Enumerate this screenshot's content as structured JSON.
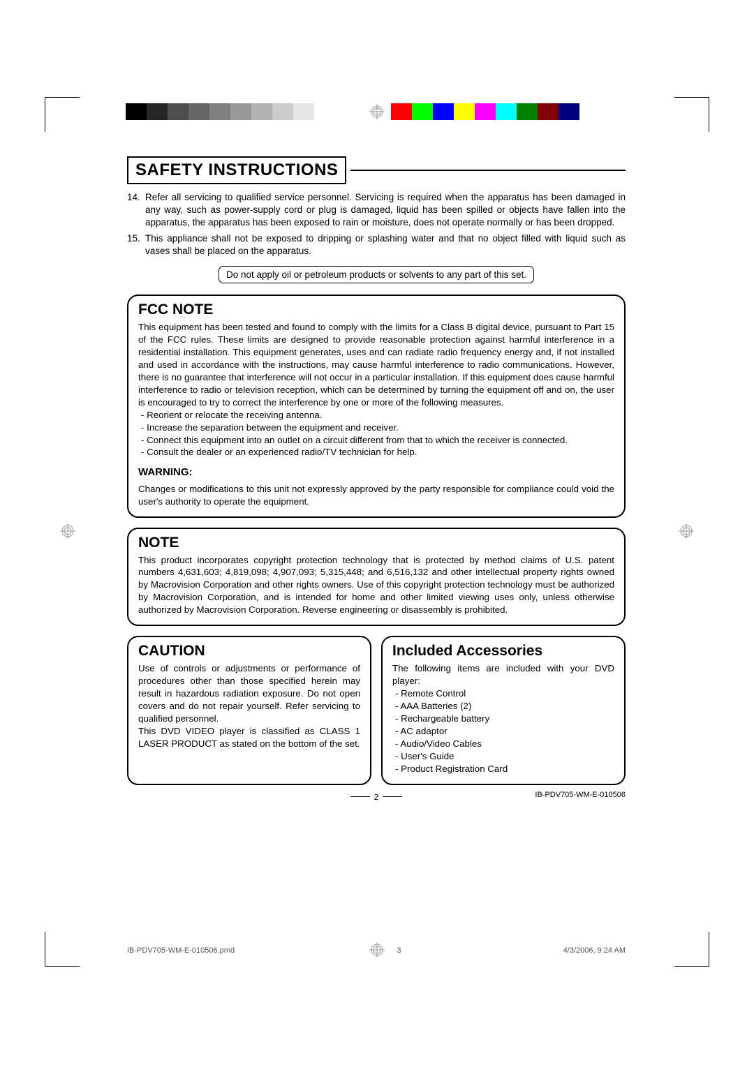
{
  "colorbar_gray": [
    "#000000",
    "#262626",
    "#4d4d4d",
    "#666666",
    "#808080",
    "#999999",
    "#b3b3b3",
    "#cccccc",
    "#e6e6e6",
    "#ffffff"
  ],
  "colorbar_color": [
    "#ff0000",
    "#00ff00",
    "#0000ff",
    "#ffff00",
    "#ff00ff",
    "#00ffff",
    "#008000",
    "#800000",
    "#000080",
    "#ffffff"
  ],
  "title": "SAFETY INSTRUCTIONS",
  "list": [
    {
      "num": "14.",
      "text": "Refer all servicing to qualified service personnel. Servicing is required when the apparatus has been damaged in any way, such as power-supply cord or plug is damaged, liquid has been spilled or objects have fallen into the apparatus, the apparatus has been exposed to rain or moisture, does not operate normally or has been dropped."
    },
    {
      "num": "15.",
      "text": "This appliance shall not be exposed to dripping or splashing water and that no object filled with liquid such as vases shall be placed on the apparatus."
    }
  ],
  "callout": "Do not apply oil or petroleum products or solvents to any part of this set.",
  "fcc": {
    "heading": "FCC NOTE",
    "body": "This equipment has been tested and found to comply with the limits for a Class B digital device, pursuant to Part 15 of the FCC rules. These limits are designed to provide reasonable protection against harmful interference in a residential installation. This equipment generates, uses and can radiate radio frequency energy and, if not installed and used in accordance with the instructions, may cause harmful interference to radio communications. However, there is no guarantee that interference will not occur in a particular installation. If this equipment does cause harmful interference to radio or television reception, which can be determined by turning the equipment off and on, the user is encouraged to try to correct the interference by one or more of the following measures.",
    "bullets": [
      "Reorient or relocate the receiving antenna.",
      "Increase the separation between the equipment and receiver.",
      "Connect this equipment into an outlet on a circuit different from that to which the receiver is connected.",
      "Consult the dealer or an experienced radio/TV technician for help."
    ],
    "warning_head": "WARNING:",
    "warning_body": "Changes or modifications to this unit not expressly approved by the party responsible for compliance could void the user's authority to operate the equipment."
  },
  "note": {
    "heading": "NOTE",
    "body": "This product incorporates copyright protection technology that is protected by method claims of U.S. patent numbers 4,631,603; 4,819,098; 4,907,093; 5,315,448; and 6,516,132 and other intellectual property rights owned by Macrovision Corporation and other rights owners. Use of this copyright protection technology must be authorized by Macrovision Corporation, and is intended for home and other limited viewing uses only, unless otherwise authorized by Macrovision Corporation. Reverse engineering or disassembly is prohibited."
  },
  "caution": {
    "heading": "CAUTION",
    "body": "Use of controls or adjustments or performance of procedures other than those specified herein may result in hazardous radiation exposure. Do not open covers and do not repair yourself. Refer servicing to qualified personnel.\nThis DVD VIDEO player is classified as CLASS 1 LASER PRODUCT as stated on the bottom of the set."
  },
  "accessories": {
    "heading": "Included Accessories",
    "intro": "The following items are included with your DVD player:",
    "items": [
      "Remote Control",
      "AAA Batteries (2)",
      "Rechargeable battery",
      "AC adaptor",
      "Audio/Video Cables",
      "User's Guide",
      "Product Registration Card"
    ]
  },
  "page_number": "2",
  "footer_code": "IB-PDV705-WM-E-010506",
  "slug": {
    "file": "IB-PDV705-WM-E-010506.pmd",
    "page": "3",
    "datetime": "4/3/2006, 9:24 AM"
  }
}
